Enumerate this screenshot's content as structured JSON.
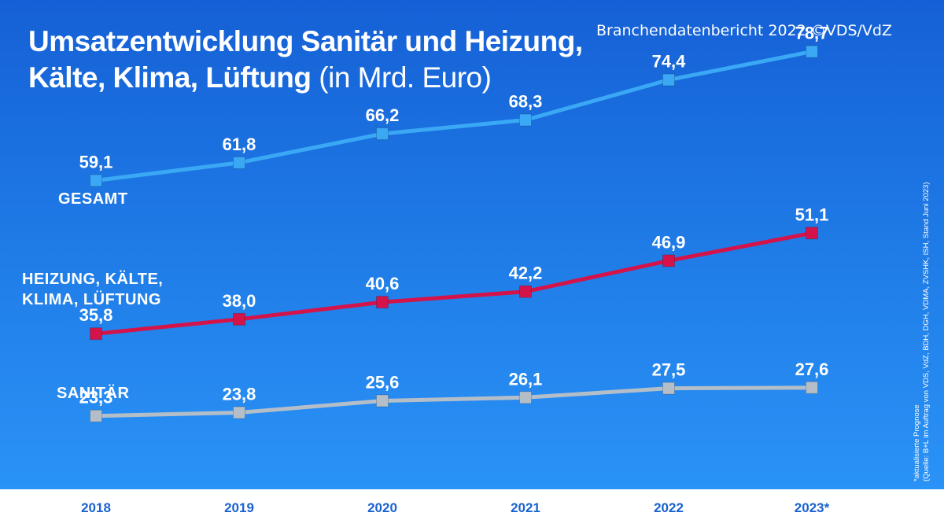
{
  "header": {
    "title_line1": "Umsatzentwicklung Sanitär und Heizung,",
    "title_line2": "Kälte, Klima, Lüftung",
    "title_unit": "(in Mrd. Euro)",
    "source": "Branchendatenbericht 2022 ©VDS/VdZ"
  },
  "notes": {
    "line1": "*aktualisierte Prognose",
    "line2": "(Quelle: B+L im Auftrag von VDS, VdZ, BDH, DGH, VDMA, ZVSHK, ISH, Stand Juni 2023)"
  },
  "labels": {
    "gesamt": "GESAMT",
    "hkkl_line1": "HEIZUNG, KÄLTE,",
    "hkkl_line2": "KLIMA, LÜFTUNG",
    "sanitaer": "SANITÄR"
  },
  "colors": {
    "gesamt": "#3aa8f5",
    "hkkl": "#d4134a",
    "sanitaer": "#b4bec9",
    "year_text": "#1a62d0"
  },
  "chart_data": {
    "type": "line",
    "categories": [
      "2018",
      "2019",
      "2020",
      "2021",
      "2022",
      "2023*"
    ],
    "series": [
      {
        "name": "GESAMT",
        "values": [
          59.1,
          61.8,
          66.2,
          68.3,
          74.4,
          78.7
        ],
        "labels": [
          "59,1",
          "61,8",
          "66,2",
          "68,3",
          "74,4",
          "78,7"
        ]
      },
      {
        "name": "HEIZUNG, KÄLTE, KLIMA, LÜFTUNG",
        "values": [
          35.8,
          38.0,
          40.6,
          42.2,
          46.9,
          51.1
        ],
        "labels": [
          "35,8",
          "38,0",
          "40,6",
          "42,2",
          "46,9",
          "51,1"
        ]
      },
      {
        "name": "SANITÄR",
        "values": [
          23.3,
          23.8,
          25.6,
          26.1,
          27.5,
          27.6
        ],
        "labels": [
          "23,3",
          "23,8",
          "25,6",
          "26,1",
          "27,5",
          "27,6"
        ]
      }
    ],
    "title": "Umsatzentwicklung Sanitär und Heizung, Kälte, Klima, Lüftung (in Mrd. Euro)",
    "xlabel": "",
    "ylabel": "",
    "grid": false
  }
}
